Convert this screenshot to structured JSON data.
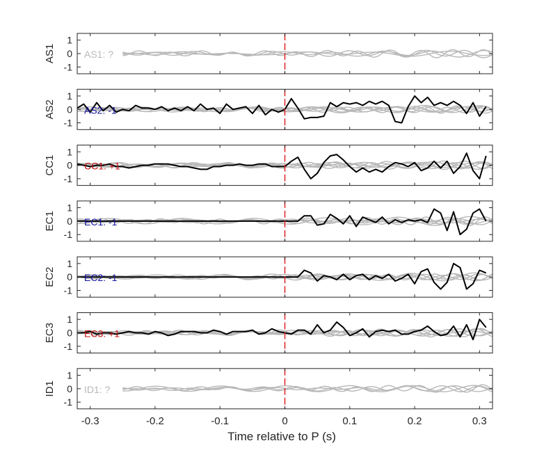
{
  "chart_data": {
    "type": "line",
    "xlabel": "Time relative to P (s)",
    "xlim": [
      -0.32,
      0.32
    ],
    "ylim": [
      -1.5,
      1.5
    ],
    "x_ticks": [
      "-0.3",
      "-0.2",
      "-0.1",
      "0",
      "0.1",
      "0.2",
      "0.3"
    ],
    "y_ticks": [
      "-1",
      "0",
      "1"
    ],
    "p_arrival_line": 0,
    "colors": {
      "grey": "#b8b8b8",
      "black": "#000000",
      "blue": "#1414a0",
      "red": "#c01010",
      "vline": "#e02020",
      "axis": "#262626"
    },
    "panels": [
      {
        "name": "AS1",
        "label": "AS1: ?",
        "label_color": "grey",
        "highlight": false
      },
      {
        "name": "AS2",
        "label": "AS2: -1",
        "label_color": "blue",
        "highlight": true
      },
      {
        "name": "CC1",
        "label": "CC1: +1",
        "label_color": "red",
        "highlight": true
      },
      {
        "name": "EC1",
        "label": "EC1: -1",
        "label_color": "blue",
        "highlight": true
      },
      {
        "name": "EC2",
        "label": "EC2: -1",
        "label_color": "blue",
        "highlight": true
      },
      {
        "name": "EC3",
        "label": "EC3: +1",
        "label_color": "red",
        "highlight": true
      },
      {
        "name": "ID1",
        "label": "ID1: ?",
        "label_color": "grey",
        "highlight": false
      }
    ],
    "black_trace_x": [
      -0.33,
      -0.32,
      -0.31,
      -0.3,
      -0.29,
      -0.28,
      -0.27,
      -0.26,
      -0.25,
      -0.24,
      -0.23,
      -0.22,
      -0.21,
      -0.2,
      -0.19,
      -0.18,
      -0.17,
      -0.16,
      -0.15,
      -0.14,
      -0.13,
      -0.12,
      -0.11,
      -0.1,
      -0.09,
      -0.08,
      -0.07,
      -0.06,
      -0.05,
      -0.04,
      -0.03,
      -0.02,
      -0.01,
      0.0,
      0.01,
      0.02,
      0.03,
      0.04,
      0.05,
      0.06,
      0.07,
      0.08,
      0.09,
      0.1,
      0.11,
      0.12,
      0.13,
      0.14,
      0.15,
      0.16,
      0.17,
      0.18,
      0.19,
      0.2,
      0.21,
      0.22,
      0.23,
      0.24,
      0.25,
      0.26,
      0.27,
      0.28,
      0.29,
      0.3,
      0.31
    ],
    "black_traces": {
      "AS2": [
        0.0,
        0.1,
        0.4,
        -0.2,
        0.5,
        -0.1,
        0.3,
        -0.2,
        0.0,
        -0.1,
        0.3,
        0.1,
        0.1,
        0.0,
        0.2,
        -0.1,
        0.1,
        -0.1,
        0.2,
        -0.1,
        0.4,
        0.0,
        0.1,
        -0.3,
        0.4,
        0.0,
        0.1,
        0.2,
        -0.3,
        0.3,
        -0.4,
        0.0,
        -0.2,
        0.0,
        0.8,
        0.1,
        -0.7,
        -0.6,
        -0.6,
        -0.5,
        0.5,
        0.2,
        0.5,
        0.4,
        0.5,
        0.3,
        0.6,
        0.4,
        0.6,
        0.3,
        -0.9,
        -1.0,
        0.2,
        1.0,
        0.5,
        0.9,
        0.3,
        0.5,
        0.3,
        0.6,
        0.3,
        -0.3,
        0.5,
        -0.5,
        0.2
      ],
      "CC1": [
        0.1,
        0.1,
        0.0,
        -0.1,
        0.0,
        0.0,
        0.1,
        -0.1,
        -0.1,
        -0.2,
        -0.1,
        0.0,
        0.0,
        0.1,
        0.1,
        0.1,
        0.0,
        -0.1,
        -0.1,
        -0.2,
        -0.3,
        -0.3,
        -0.1,
        -0.1,
        0.0,
        0.0,
        0.1,
        0.0,
        0.0,
        0.1,
        0.1,
        -0.1,
        -0.1,
        -0.1,
        0.3,
        0.6,
        -0.3,
        -1.0,
        -0.6,
        0.2,
        0.7,
        0.8,
        0.4,
        -0.1,
        -0.5,
        -0.2,
        -0.5,
        -0.3,
        -0.5,
        -0.1,
        0.2,
        0.1,
        -0.1,
        0.2,
        -0.4,
        -0.2,
        0.3,
        -0.2,
        0.3,
        -0.6,
        -0.1,
        0.9,
        -0.4,
        -1.0,
        0.7
      ],
      "EC1": [
        0.0,
        0.0,
        0.0,
        0.0,
        0.0,
        0.0,
        0.0,
        0.0,
        0.0,
        0.0,
        0.0,
        0.0,
        0.0,
        0.0,
        0.0,
        0.0,
        0.0,
        0.0,
        0.0,
        0.0,
        0.0,
        0.0,
        0.0,
        0.0,
        0.0,
        0.0,
        0.0,
        0.0,
        0.0,
        0.0,
        0.0,
        0.0,
        0.0,
        0.0,
        0.0,
        0.0,
        0.4,
        0.4,
        -0.3,
        -0.2,
        0.5,
        0.2,
        -0.2,
        0.4,
        -0.4,
        0.3,
        0.1,
        -0.1,
        0.3,
        -0.2,
        0.1,
        -0.1,
        0.1,
        0.0,
        0.1,
        -0.1,
        0.9,
        0.6,
        -0.7,
        0.7,
        -1.0,
        -0.6,
        0.6,
        0.9,
        0.0
      ],
      "EC2": [
        0.0,
        0.0,
        0.0,
        0.0,
        0.0,
        0.0,
        0.0,
        0.0,
        0.0,
        0.0,
        0.0,
        0.0,
        0.0,
        0.0,
        0.0,
        0.0,
        0.0,
        0.0,
        0.0,
        0.0,
        0.0,
        0.0,
        0.0,
        0.0,
        0.0,
        0.0,
        0.0,
        0.0,
        0.0,
        0.0,
        0.0,
        0.0,
        0.0,
        0.0,
        0.0,
        0.0,
        0.5,
        0.3,
        -0.3,
        0.1,
        0.0,
        -0.2,
        0.2,
        -0.2,
        0.1,
        0.2,
        -0.2,
        0.1,
        -0.1,
        0.2,
        -0.3,
        -0.1,
        0.2,
        -0.5,
        0.4,
        0.6,
        -0.4,
        -0.9,
        -0.4,
        1.0,
        0.7,
        -0.9,
        -0.5,
        0.5,
        0.3
      ],
      "EC3": [
        0.1,
        0.0,
        0.0,
        0.1,
        -0.1,
        0.0,
        0.0,
        -0.1,
        0.0,
        0.1,
        0.0,
        0.0,
        -0.1,
        0.1,
        0.0,
        -0.2,
        -0.1,
        0.1,
        0.1,
        0.1,
        0.0,
        0.0,
        0.2,
        0.1,
        -0.1,
        0.1,
        0.1,
        0.1,
        0.2,
        -0.1,
        0.0,
        0.3,
        0.1,
        0.0,
        -0.1,
        0.2,
        0.2,
        -0.1,
        0.6,
        0.0,
        0.2,
        0.8,
        0.4,
        -0.2,
        0.0,
        0.3,
        -0.3,
        0.1,
        0.2,
        0.1,
        0.2,
        -0.1,
        -0.1,
        0.1,
        0.2,
        0.5,
        0.1,
        -0.2,
        -0.1,
        0.5,
        -0.3,
        0.6,
        -0.5,
        1.0,
        0.4
      ]
    }
  }
}
